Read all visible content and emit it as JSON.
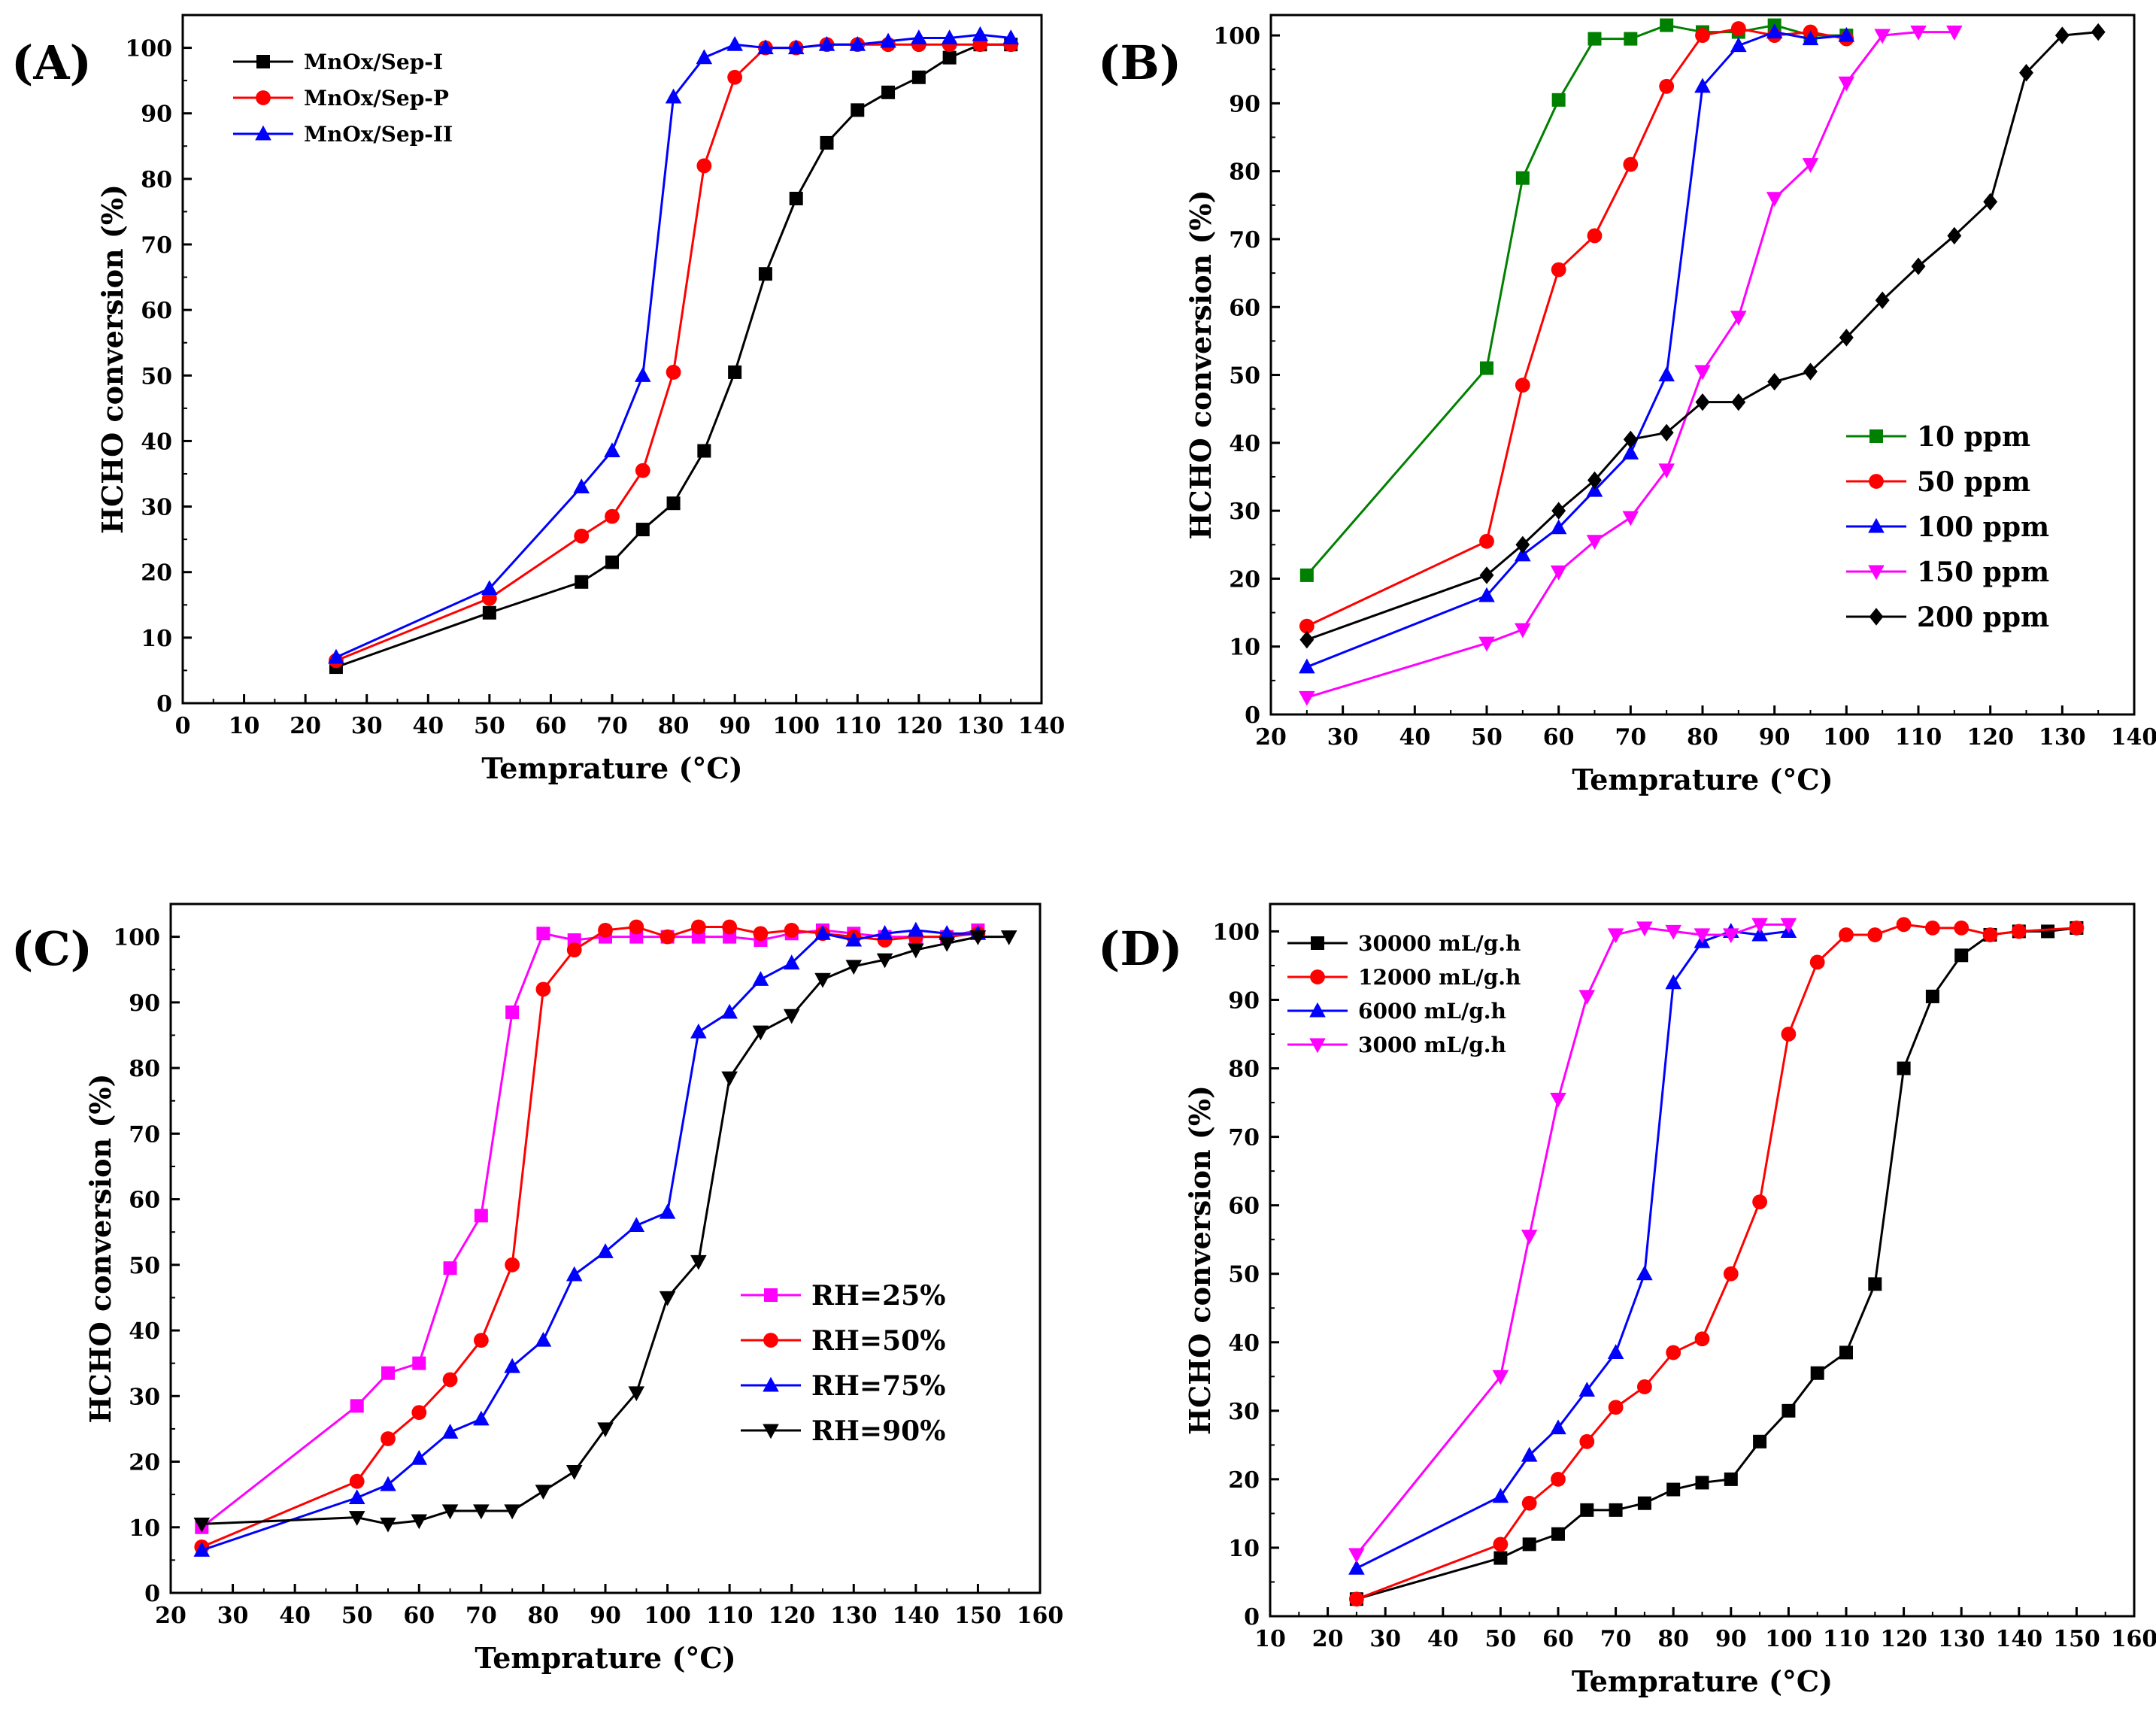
{
  "figure": {
    "panels": [
      "(A)",
      "(B)",
      "(C)",
      "(D)"
    ]
  },
  "chart_data": [
    {
      "panel": "(A)",
      "type": "line",
      "xlabel": "Temprature (°C)",
      "ylabel": "HCHO conversion (%)",
      "xlim": [
        0,
        140
      ],
      "ylim": [
        0,
        105
      ],
      "xticks": [
        0,
        10,
        20,
        30,
        40,
        50,
        60,
        70,
        80,
        90,
        100,
        110,
        120,
        130,
        140
      ],
      "yticks": [
        0,
        10,
        20,
        30,
        40,
        50,
        60,
        70,
        80,
        90,
        100
      ],
      "grid": false,
      "legend_position": "top-left",
      "series": [
        {
          "name": "MnOx/Sep-I",
          "color": "#000000",
          "marker": "square",
          "x": [
            25,
            50,
            65,
            70,
            75,
            80,
            85,
            90,
            95,
            100,
            105,
            110,
            115,
            120,
            125,
            130,
            135
          ],
          "y": [
            5.5,
            13.8,
            18.5,
            21.5,
            26.5,
            30.5,
            38.5,
            50.5,
            65.5,
            77,
            85.5,
            90.5,
            93.2,
            95.5,
            98.5,
            100.5,
            100.5
          ]
        },
        {
          "name": "MnOx/Sep-P",
          "color": "#ff0000",
          "marker": "circle",
          "x": [
            25,
            50,
            65,
            70,
            75,
            80,
            85,
            90,
            95,
            100,
            105,
            110,
            115,
            120,
            125,
            130,
            135
          ],
          "y": [
            6.5,
            16,
            25.5,
            28.5,
            35.5,
            50.5,
            82,
            95.5,
            100,
            100,
            100.5,
            100.5,
            100.5,
            100.5,
            100.5,
            100.5,
            100.5
          ]
        },
        {
          "name": "MnOx/Sep-II",
          "color": "#0000ff",
          "marker": "triangle-up",
          "x": [
            25,
            50,
            65,
            70,
            75,
            80,
            85,
            90,
            95,
            100,
            105,
            110,
            115,
            120,
            125,
            130,
            135
          ],
          "y": [
            7,
            17.5,
            33,
            38.5,
            50,
            92.5,
            98.5,
            100.5,
            100,
            100,
            100.5,
            100.5,
            101,
            101.5,
            101.5,
            102,
            101.5
          ]
        }
      ]
    },
    {
      "panel": "(B)",
      "type": "line",
      "xlabel": "Temprature (°C)",
      "ylabel": "HCHO conversion (%)",
      "xlim": [
        20,
        140
      ],
      "ylim": [
        0,
        103
      ],
      "xticks": [
        20,
        30,
        40,
        50,
        60,
        70,
        80,
        90,
        100,
        110,
        120,
        130,
        140
      ],
      "yticks": [
        0,
        10,
        20,
        30,
        40,
        50,
        60,
        70,
        80,
        90,
        100
      ],
      "grid": false,
      "legend_position": "center-right",
      "series": [
        {
          "name": "10 ppm",
          "color": "#008000",
          "marker": "square",
          "x": [
            25,
            50,
            55,
            60,
            65,
            70,
            75,
            80,
            85,
            90,
            95,
            100
          ],
          "y": [
            20.5,
            51,
            79,
            90.5,
            99.5,
            99.5,
            101.5,
            100.5,
            100.5,
            101.5,
            100,
            100
          ]
        },
        {
          "name": "50 ppm",
          "color": "#ff0000",
          "marker": "circle",
          "x": [
            25,
            50,
            55,
            60,
            65,
            70,
            75,
            80,
            85,
            90,
            95,
            100
          ],
          "y": [
            13,
            25.5,
            48.5,
            65.5,
            70.5,
            81,
            92.5,
            100,
            101,
            100,
            100.5,
            99.5
          ]
        },
        {
          "name": "100 ppm",
          "color": "#0000ff",
          "marker": "triangle-up",
          "x": [
            25,
            50,
            55,
            60,
            65,
            70,
            75,
            80,
            85,
            90,
            95,
            100
          ],
          "y": [
            7,
            17.5,
            23.5,
            27.5,
            33,
            38.5,
            50,
            92.5,
            98.5,
            100.5,
            99.5,
            100
          ]
        },
        {
          "name": "150 ppm",
          "color": "#ff00ff",
          "marker": "triangle-down",
          "x": [
            25,
            50,
            55,
            60,
            65,
            70,
            75,
            80,
            85,
            90,
            95,
            100,
            105,
            110,
            115
          ],
          "y": [
            2.5,
            10.5,
            12.5,
            21,
            25.5,
            29,
            36,
            50.5,
            58.5,
            76,
            81,
            93,
            100,
            100.5,
            100.5
          ]
        },
        {
          "name": "200 ppm",
          "color": "#000000",
          "marker": "diamond",
          "x": [
            25,
            50,
            55,
            60,
            65,
            70,
            75,
            80,
            85,
            90,
            95,
            100,
            105,
            110,
            115,
            120,
            125,
            130,
            135
          ],
          "y": [
            11,
            20.5,
            25,
            30,
            34.5,
            40.5,
            41.5,
            46,
            46,
            49,
            50.5,
            55.5,
            61,
            66,
            70.5,
            75.5,
            94.5,
            100,
            100.5
          ]
        }
      ]
    },
    {
      "panel": "(C)",
      "type": "line",
      "xlabel": "Temprature (°C)",
      "ylabel": "HCHO conversion (%)",
      "xlim": [
        20,
        160
      ],
      "ylim": [
        0,
        105
      ],
      "xticks": [
        20,
        30,
        40,
        50,
        60,
        70,
        80,
        90,
        100,
        110,
        120,
        130,
        140,
        150,
        160
      ],
      "yticks": [
        0,
        10,
        20,
        30,
        40,
        50,
        60,
        70,
        80,
        90,
        100
      ],
      "grid": false,
      "legend_position": "center-right",
      "series": [
        {
          "name": "RH=25%",
          "color": "#ff00ff",
          "marker": "square",
          "x": [
            25,
            50,
            55,
            60,
            65,
            70,
            75,
            80,
            85,
            90,
            95,
            100,
            105,
            110,
            115,
            120,
            125,
            130,
            135,
            140,
            145,
            150
          ],
          "y": [
            10,
            28.5,
            33.5,
            35,
            49.5,
            57.5,
            88.5,
            100.5,
            99.5,
            100,
            100,
            100,
            100,
            100,
            99.5,
            100.5,
            101,
            100.5,
            100,
            100,
            100,
            101
          ]
        },
        {
          "name": "RH=50%",
          "color": "#ff0000",
          "marker": "circle",
          "x": [
            25,
            50,
            55,
            60,
            65,
            70,
            75,
            80,
            85,
            90,
            95,
            100,
            105,
            110,
            115,
            120,
            125,
            130,
            135,
            140,
            145,
            150
          ],
          "y": [
            7,
            17,
            23.5,
            27.5,
            32.5,
            38.5,
            50,
            92,
            98,
            101,
            101.5,
            100,
            101.5,
            101.5,
            100.5,
            101,
            100.5,
            100,
            99.5,
            100,
            100,
            100.5
          ]
        },
        {
          "name": "RH=75%",
          "color": "#0000ff",
          "marker": "triangle-up",
          "x": [
            25,
            50,
            55,
            60,
            65,
            70,
            75,
            80,
            85,
            90,
            95,
            100,
            105,
            110,
            115,
            120,
            125,
            130,
            135,
            140,
            145,
            150
          ],
          "y": [
            6.5,
            14.5,
            16.5,
            20.5,
            24.5,
            26.5,
            34.5,
            38.5,
            48.5,
            52,
            56,
            58,
            85.5,
            88.5,
            93.5,
            96,
            100.5,
            99.5,
            100.5,
            101,
            100.5,
            100.5
          ]
        },
        {
          "name": "RH=90%",
          "color": "#000000",
          "marker": "triangle-down",
          "x": [
            25,
            50,
            55,
            60,
            65,
            70,
            75,
            80,
            85,
            90,
            95,
            100,
            105,
            110,
            115,
            120,
            125,
            130,
            135,
            140,
            145,
            150,
            155
          ],
          "y": [
            10.5,
            11.5,
            10.5,
            11,
            12.5,
            12.5,
            12.5,
            15.5,
            18.5,
            25,
            30.5,
            45,
            50.5,
            78.5,
            85.5,
            88,
            93.5,
            95.5,
            96.5,
            98,
            99,
            100,
            100
          ]
        }
      ]
    },
    {
      "panel": "(D)",
      "type": "line",
      "xlabel": "Temprature (°C)",
      "ylabel": "HCHO conversion (%)",
      "xlim": [
        10,
        160
      ],
      "ylim": [
        0,
        104
      ],
      "xticks": [
        10,
        20,
        30,
        40,
        50,
        60,
        70,
        80,
        90,
        100,
        110,
        120,
        130,
        140,
        150,
        160
      ],
      "yticks": [
        0,
        10,
        20,
        30,
        40,
        50,
        60,
        70,
        80,
        90,
        100
      ],
      "grid": false,
      "legend_position": "top-left",
      "series": [
        {
          "name": "30000 mL/g.h",
          "color": "#000000",
          "marker": "square",
          "x": [
            25,
            50,
            55,
            60,
            65,
            70,
            75,
            80,
            85,
            90,
            95,
            100,
            105,
            110,
            115,
            120,
            125,
            130,
            135,
            140,
            145,
            150
          ],
          "y": [
            2.5,
            8.5,
            10.5,
            12,
            15.5,
            15.5,
            16.5,
            18.5,
            19.5,
            20,
            25.5,
            30,
            35.5,
            38.5,
            48.5,
            80,
            90.5,
            96.5,
            99.5,
            100,
            100,
            100.5
          ]
        },
        {
          "name": "12000 mL/g.h",
          "color": "#ff0000",
          "marker": "circle",
          "x": [
            25,
            50,
            55,
            60,
            65,
            70,
            75,
            80,
            85,
            90,
            95,
            100,
            105,
            110,
            115,
            120,
            125,
            130,
            135,
            140,
            150
          ],
          "y": [
            2.5,
            10.5,
            16.5,
            20,
            25.5,
            30.5,
            33.5,
            38.5,
            40.5,
            50,
            60.5,
            85,
            95.5,
            99.5,
            99.5,
            101,
            100.5,
            100.5,
            99.5,
            100,
            100.5
          ]
        },
        {
          "name": "6000 mL/g.h",
          "color": "#0000ff",
          "marker": "triangle-up",
          "x": [
            25,
            50,
            55,
            60,
            65,
            70,
            75,
            80,
            85,
            90,
            95,
            100
          ],
          "y": [
            7,
            17.5,
            23.5,
            27.5,
            33,
            38.5,
            50,
            92.5,
            98.5,
            100,
            99.5,
            100
          ]
        },
        {
          "name": "3000 mL/g.h",
          "color": "#ff00ff",
          "marker": "triangle-down",
          "x": [
            25,
            50,
            55,
            60,
            65,
            70,
            75,
            80,
            85,
            90,
            95,
            100
          ],
          "y": [
            9,
            35,
            55.5,
            75.5,
            90.5,
            99.5,
            100.5,
            100,
            99.5,
            99.5,
            101,
            101
          ]
        }
      ]
    }
  ]
}
